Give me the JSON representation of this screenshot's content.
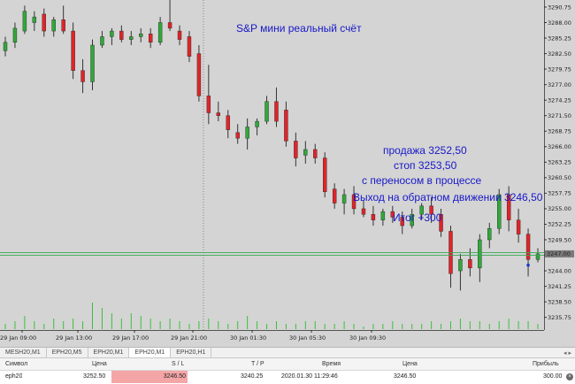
{
  "chart": {
    "title_note": "S&P мини реальный счёт",
    "notes": {
      "sell": "продажа 3252,50",
      "stop": "стоп 3253,50",
      "transfer": "с переносом в процессе",
      "exit": "Выход на обратном движении 3246,50",
      "total": "Итог +300"
    },
    "current_price_label": "3247.00",
    "colors": {
      "up": "#31a83a",
      "down": "#e0242a",
      "background": "#d4d4d4",
      "price_line": "#39a855",
      "volume": "#39c039",
      "note_text": "#1818c8",
      "sl_highlight": "#f4a6a6"
    }
  },
  "chart_data": {
    "type": "candlestick",
    "symbol": "MESH20",
    "timeframe": "M1",
    "ylim": [
      3233.5,
      3292.0
    ],
    "y_ticks": [
      "3290.75",
      "3288.00",
      "3285.25",
      "3282.50",
      "3279.75",
      "3277.00",
      "3274.25",
      "3271.50",
      "3268.75",
      "3266.00",
      "3263.25",
      "3260.50",
      "3257.75",
      "3255.00",
      "3252.25",
      "3249.50",
      "3246.75",
      "3244.00",
      "3241.25",
      "3238.50",
      "3235.75"
    ],
    "x_ticks": [
      "29 Jan 09:00",
      "29 Jan 13:00",
      "29 Jan 17:00",
      "29 Jan 21:00",
      "30 Jan 01:30",
      "30 Jan 05:30",
      "30 Jan 09:30"
    ],
    "entry_price": 3252.5,
    "stop_price": 3253.5,
    "exit_price": 3246.5,
    "current_price": 3247.0,
    "candles": [
      {
        "o": 3283.0,
        "h": 3285.5,
        "l": 3282.0,
        "c": 3284.5
      },
      {
        "o": 3284.5,
        "h": 3288.0,
        "l": 3283.5,
        "c": 3287.0
      },
      {
        "o": 3286.5,
        "h": 3291.0,
        "l": 3286.0,
        "c": 3290.0
      },
      {
        "o": 3288.0,
        "h": 3290.0,
        "l": 3286.5,
        "c": 3289.0
      },
      {
        "o": 3289.5,
        "h": 3290.5,
        "l": 3285.5,
        "c": 3286.5
      },
      {
        "o": 3286.5,
        "h": 3289.0,
        "l": 3285.5,
        "c": 3288.5
      },
      {
        "o": 3288.5,
        "h": 3291.0,
        "l": 3286.0,
        "c": 3286.5
      },
      {
        "o": 3286.5,
        "h": 3288.0,
        "l": 3278.0,
        "c": 3279.5
      },
      {
        "o": 3279.5,
        "h": 3281.5,
        "l": 3275.5,
        "c": 3277.5
      },
      {
        "o": 3277.5,
        "h": 3285.0,
        "l": 3276.0,
        "c": 3284.0
      },
      {
        "o": 3284.0,
        "h": 3286.5,
        "l": 3283.5,
        "c": 3285.5
      },
      {
        "o": 3285.5,
        "h": 3287.0,
        "l": 3284.0,
        "c": 3286.5
      },
      {
        "o": 3286.5,
        "h": 3287.5,
        "l": 3284.5,
        "c": 3285.0
      },
      {
        "o": 3285.0,
        "h": 3286.5,
        "l": 3284.0,
        "c": 3285.5
      },
      {
        "o": 3285.5,
        "h": 3287.0,
        "l": 3284.5,
        "c": 3286.0
      },
      {
        "o": 3286.0,
        "h": 3287.0,
        "l": 3283.5,
        "c": 3284.5
      },
      {
        "o": 3284.5,
        "h": 3289.0,
        "l": 3284.0,
        "c": 3288.0
      },
      {
        "o": 3288.0,
        "h": 3292.0,
        "l": 3286.5,
        "c": 3287.0
      },
      {
        "o": 3286.5,
        "h": 3287.5,
        "l": 3284.0,
        "c": 3285.0
      },
      {
        "o": 3285.5,
        "h": 3286.5,
        "l": 3281.0,
        "c": 3282.0
      },
      {
        "o": 3282.5,
        "h": 3284.0,
        "l": 3274.0,
        "c": 3275.0
      },
      {
        "o": 3275.0,
        "h": 3280.5,
        "l": 3270.0,
        "c": 3272.0
      },
      {
        "o": 3272.0,
        "h": 3274.0,
        "l": 3270.5,
        "c": 3271.5
      },
      {
        "o": 3271.5,
        "h": 3272.5,
        "l": 3267.5,
        "c": 3269.0
      },
      {
        "o": 3268.5,
        "h": 3270.0,
        "l": 3266.5,
        "c": 3267.5
      },
      {
        "o": 3267.5,
        "h": 3271.0,
        "l": 3265.5,
        "c": 3269.5
      },
      {
        "o": 3269.5,
        "h": 3271.0,
        "l": 3268.0,
        "c": 3270.5
      },
      {
        "o": 3270.5,
        "h": 3275.0,
        "l": 3270.0,
        "c": 3274.0
      },
      {
        "o": 3274.0,
        "h": 3276.5,
        "l": 3269.5,
        "c": 3270.5
      },
      {
        "o": 3272.5,
        "h": 3274.0,
        "l": 3266.0,
        "c": 3267.0
      },
      {
        "o": 3267.0,
        "h": 3268.5,
        "l": 3262.5,
        "c": 3264.0
      },
      {
        "o": 3264.5,
        "h": 3267.0,
        "l": 3263.0,
        "c": 3265.5
      },
      {
        "o": 3265.5,
        "h": 3266.5,
        "l": 3263.0,
        "c": 3264.0
      },
      {
        "o": 3264.0,
        "h": 3265.0,
        "l": 3257.0,
        "c": 3258.0
      },
      {
        "o": 3258.5,
        "h": 3259.5,
        "l": 3255.0,
        "c": 3256.0
      },
      {
        "o": 3256.0,
        "h": 3258.5,
        "l": 3254.0,
        "c": 3257.5
      },
      {
        "o": 3257.5,
        "h": 3259.0,
        "l": 3254.0,
        "c": 3255.0
      },
      {
        "o": 3255.0,
        "h": 3256.5,
        "l": 3253.5,
        "c": 3254.0
      },
      {
        "o": 3254.0,
        "h": 3255.5,
        "l": 3252.0,
        "c": 3253.0
      },
      {
        "o": 3253.0,
        "h": 3255.0,
        "l": 3252.0,
        "c": 3254.5
      },
      {
        "o": 3254.5,
        "h": 3255.5,
        "l": 3252.5,
        "c": 3253.5
      },
      {
        "o": 3253.5,
        "h": 3254.5,
        "l": 3250.5,
        "c": 3252.0
      },
      {
        "o": 3252.0,
        "h": 3255.0,
        "l": 3251.5,
        "c": 3254.0
      },
      {
        "o": 3254.0,
        "h": 3256.0,
        "l": 3253.0,
        "c": 3255.5
      },
      {
        "o": 3255.5,
        "h": 3257.0,
        "l": 3252.5,
        "c": 3254.0
      },
      {
        "o": 3254.0,
        "h": 3255.0,
        "l": 3250.0,
        "c": 3251.0
      },
      {
        "o": 3251.0,
        "h": 3252.0,
        "l": 3241.0,
        "c": 3243.5
      },
      {
        "o": 3244.0,
        "h": 3247.0,
        "l": 3240.5,
        "c": 3246.0
      },
      {
        "o": 3246.0,
        "h": 3248.0,
        "l": 3243.0,
        "c": 3244.5
      },
      {
        "o": 3244.5,
        "h": 3250.5,
        "l": 3242.0,
        "c": 3249.5
      },
      {
        "o": 3249.5,
        "h": 3252.5,
        "l": 3248.0,
        "c": 3251.5
      },
      {
        "o": 3251.5,
        "h": 3258.5,
        "l": 3250.5,
        "c": 3257.5
      },
      {
        "o": 3257.5,
        "h": 3259.0,
        "l": 3251.0,
        "c": 3253.0
      },
      {
        "o": 3253.0,
        "h": 3255.0,
        "l": 3249.0,
        "c": 3250.5
      },
      {
        "o": 3250.5,
        "h": 3251.5,
        "l": 3243.0,
        "c": 3246.0
      },
      {
        "o": 3246.0,
        "h": 3248.0,
        "l": 3245.5,
        "c": 3247.0
      }
    ],
    "volumes": [
      2,
      3,
      5,
      3,
      2,
      4,
      3,
      4,
      3,
      10,
      8,
      6,
      4,
      6,
      5,
      4,
      3,
      4,
      3,
      2,
      3,
      4,
      3,
      2,
      3,
      5,
      3,
      2,
      3,
      2,
      2,
      3,
      3,
      2,
      2,
      3,
      2,
      1,
      2,
      2,
      3,
      2,
      2,
      2,
      3,
      2,
      3,
      4,
      3,
      3,
      2,
      3,
      4,
      3,
      3,
      2
    ]
  },
  "tabs": [
    {
      "label": "MESH20,M1"
    },
    {
      "label": "EPH20,M5"
    },
    {
      "label": "EPH20,M1"
    },
    {
      "label": "EPH20,M1"
    },
    {
      "label": "EPH20,H1"
    }
  ],
  "positions": {
    "headers": {
      "symbol": "Символ",
      "price": "Цена",
      "sl": "S / L",
      "tp": "T / P",
      "time": "Время",
      "price2": "Цена",
      "profit": "Прибыль"
    },
    "row": {
      "symbol": "eph20",
      "price": "3252.50",
      "sl": "3246.50",
      "tp": "3240.25",
      "time": "2020.01.30 11:29:46",
      "price2": "3246.50",
      "profit": "300.00"
    }
  }
}
